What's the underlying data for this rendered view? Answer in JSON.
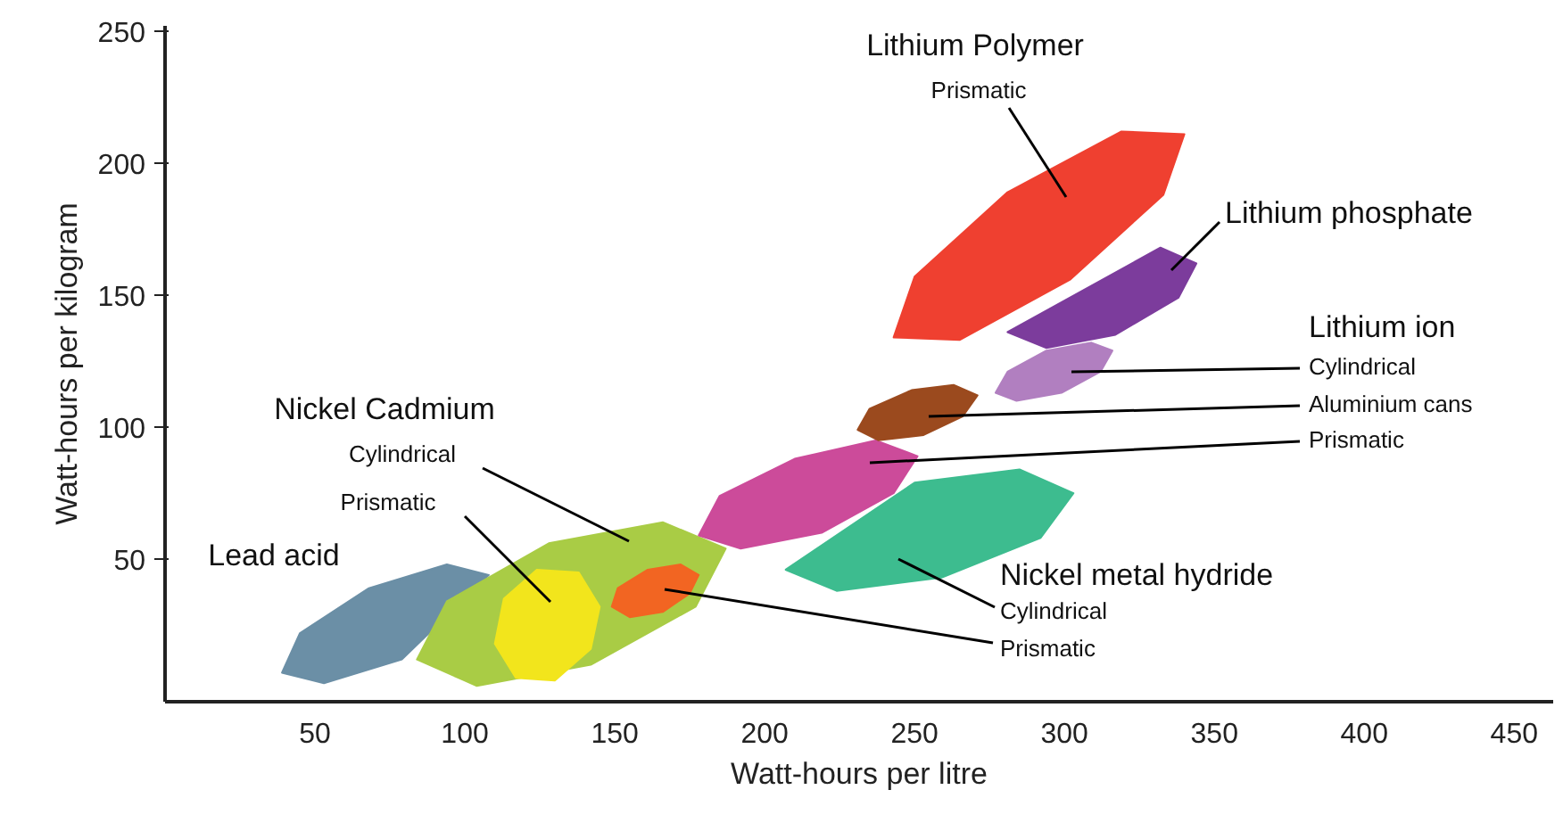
{
  "chart_data": {
    "type": "area",
    "xlabel": "Watt-hours per litre",
    "ylabel": "Watt-hours per kilogram",
    "xlim": [
      0,
      463
    ],
    "ylim": [
      -4,
      252
    ],
    "xticks": [
      50,
      100,
      150,
      200,
      250,
      300,
      350,
      400,
      450
    ],
    "yticks": [
      50,
      100,
      150,
      200,
      250
    ],
    "series": [
      {
        "color": "#6b8fa6",
        "x": [
          108,
          102,
          79,
          53,
          39,
          45,
          68,
          94
        ],
        "values": [
          44,
          null,
          12,
          3,
          7,
          22,
          39,
          48
        ]
      },
      {
        "color": "#a9cc45",
        "x": [
          187,
          177,
          142,
          104,
          84,
          94,
          128,
          166
        ],
        "values": [
          54,
          32,
          10,
          2,
          12,
          34,
          56,
          64
        ]
      },
      {
        "color": "#f2e51c",
        "x": [
          138,
          145,
          142,
          130,
          117,
          110,
          113,
          124
        ],
        "values": [
          45,
          32,
          16,
          4,
          5,
          18,
          35,
          46
        ]
      },
      {
        "color": "#f26522",
        "x": [
          178,
          175,
          166,
          155,
          149,
          151,
          161,
          172
        ],
        "values": [
          44,
          37,
          30,
          28,
          32,
          39,
          46,
          48
        ]
      },
      {
        "color": "#3dbc8f",
        "x": [
          303,
          292,
          259,
          224,
          207,
          218,
          250,
          285
        ],
        "values": [
          75,
          58,
          43,
          38,
          46,
          null,
          79,
          84
        ]
      },
      {
        "color": "#cc4b9a",
        "x": [
          251,
          243,
          219,
          192,
          178,
          185,
          210,
          237
        ],
        "values": [
          89,
          75,
          60,
          54,
          59,
          74,
          88,
          95
        ]
      },
      {
        "color": "#9b4a1e",
        "x": [
          271,
          266,
          253,
          238,
          231,
          235,
          249,
          263
        ],
        "values": [
          112,
          104,
          97,
          95,
          99,
          107,
          114,
          116
        ]
      },
      {
        "color": "#b17fc0",
        "x": [
          316,
          312,
          299,
          284,
          277,
          281,
          294,
          309
        ],
        "values": [
          129,
          121,
          113,
          110,
          113,
          121,
          129,
          132
        ]
      },
      {
        "color": "#7c3c9c",
        "x": [
          344,
          338,
          317,
          294,
          281,
          287,
          308,
          332
        ],
        "values": [
          162,
          149,
          135,
          130,
          136,
          null,
          null,
          168
        ]
      },
      {
        "color": "#ef4030",
        "x": [
          340,
          333,
          302,
          265,
          243,
          250,
          281,
          319
        ],
        "values": [
          211,
          188,
          156,
          133,
          134,
          157,
          189,
          212
        ]
      }
    ],
    "annotations": [
      "Lithium Polymer",
      "Prismatic",
      "Lithium phosphate",
      "Lithium ion",
      "Cylindrical",
      "Aluminium cans",
      "Prismatic",
      "Nickel Cadmium",
      "Cylindrical",
      "Prismatic",
      "Lead acid",
      "Nickel metal hydride",
      "Cylindrical",
      "Prismatic"
    ]
  }
}
